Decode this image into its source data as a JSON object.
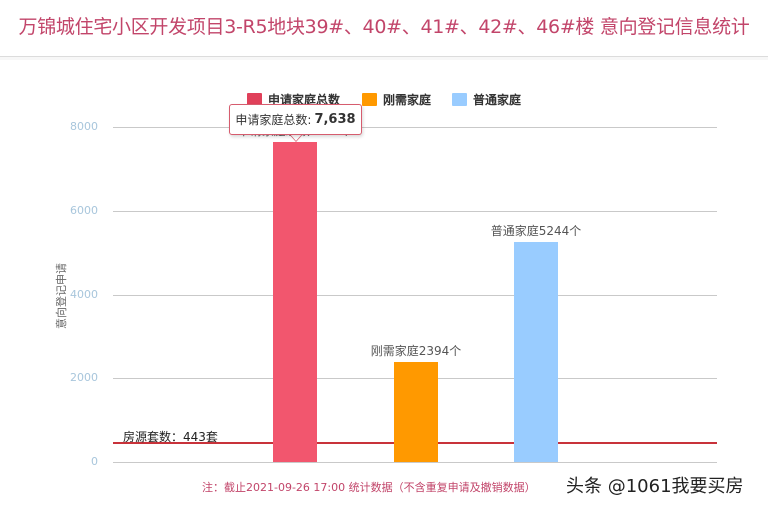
{
  "header": {
    "title": "万锦城住宅小区开发项目3-R5地块39#、40#、41#、42#、46#楼 意向登记信息统计"
  },
  "legend": [
    {
      "label": "申请家庭总数",
      "color": "#e0405a"
    },
    {
      "label": "刚需家庭",
      "color": "#ff9900"
    },
    {
      "label": "普通家庭",
      "color": "#99ccff"
    }
  ],
  "tooltip": {
    "label": "申请家庭总数:",
    "value": "7,638"
  },
  "reference_line": {
    "label": "房源套数：443套",
    "value": 443,
    "color": "#c8323a"
  },
  "footer": {
    "note": "注：截止2021-09-26 17:00 统计数据（不含重复申请及撤销数据）",
    "watermark": "头条 @1061我要买房"
  },
  "chart_data": {
    "type": "bar",
    "title": "万锦城住宅小区开发项目3-R5地块39#、40#、41#、42#、46#楼 意向登记信息统计",
    "xlabel": "",
    "ylabel": "意向登记申请",
    "ylim": [
      0,
      8000
    ],
    "yticks": [
      "0",
      "2000",
      "4000",
      "6000",
      "8000"
    ],
    "grid": true,
    "legend_position": "top",
    "series": [
      {
        "name": "申请家庭总数",
        "values": [
          7638
        ],
        "color": "#f2566e",
        "data_label": "申请家庭总数7638个"
      },
      {
        "name": "刚需家庭",
        "values": [
          2394
        ],
        "color": "#ff9900",
        "data_label": "刚需家庭2394个"
      },
      {
        "name": "普通家庭",
        "values": [
          5244
        ],
        "color": "#99ccff",
        "data_label": "普通家庭5244个"
      }
    ],
    "annotations": [
      {
        "type": "hline",
        "y": 443,
        "label": "房源套数：443套"
      },
      {
        "type": "note",
        "text": "注：截止2021-09-26 17:00 统计数据（不含重复申请及撤销数据）"
      }
    ]
  }
}
